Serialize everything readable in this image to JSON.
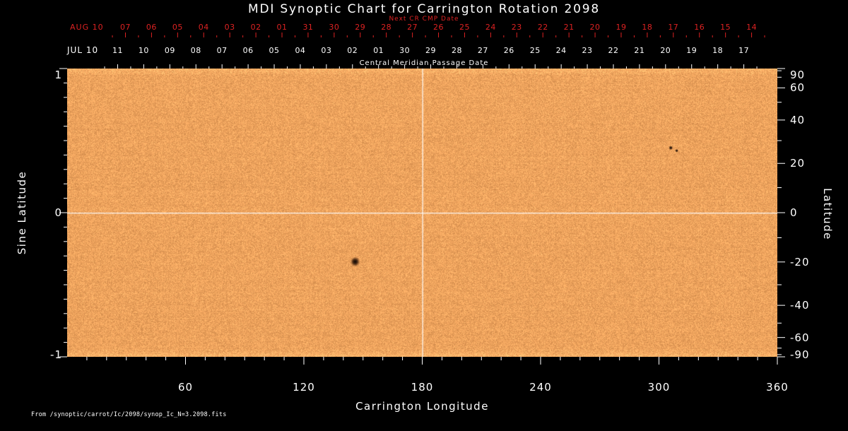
{
  "chart_data": {
    "type": "heatmap",
    "title": "MDI Synoptic Chart for Carrington Rotation 2098",
    "xlabel": "Carrington Longitude",
    "ylabel_left": "Sine Latitude",
    "ylabel_right": "Latitude",
    "x_range": [
      0,
      360
    ],
    "y_range_sine": [
      -1,
      1
    ],
    "x_major_ticks": [
      60,
      120,
      180,
      240,
      300,
      360
    ],
    "x_minor_step_deg": 10,
    "left_ticks_sine": [
      1,
      0,
      -1
    ],
    "left_minor_step_sine": 0.1,
    "right_ticks_deg": [
      90,
      60,
      40,
      20,
      0,
      -20,
      -40,
      -60,
      -90
    ],
    "right_minor_ticks_deg": [
      80,
      70,
      50,
      30,
      10,
      -10,
      -30,
      -50,
      -70,
      -80
    ],
    "crosshair": {
      "longitude": 180,
      "sine_latitude": 0
    },
    "top_axis_red": {
      "label": "Next CR CMP Date",
      "month_label": "AUG 10",
      "tick_labels": [
        "07",
        "06",
        "05",
        "04",
        "03",
        "02",
        "01",
        "31",
        "30",
        "29",
        "28",
        "27",
        "26",
        "25",
        "24",
        "23",
        "22",
        "21",
        "20",
        "19",
        "18",
        "17",
        "16",
        "15",
        "14"
      ]
    },
    "top_axis_white": {
      "label": "Central Meridian Passage Date",
      "month_label": "JUL 10",
      "tick_labels": [
        "11",
        "10",
        "09",
        "08",
        "07",
        "06",
        "05",
        "04",
        "03",
        "02",
        "01",
        "30",
        "29",
        "28",
        "27",
        "26",
        "25",
        "24",
        "23",
        "22",
        "21",
        "20",
        "19",
        "18",
        "17"
      ]
    },
    "sunspots": [
      {
        "longitude": 146,
        "sine_latitude": -0.34,
        "radius_px": 3.2
      },
      {
        "longitude": 306,
        "sine_latitude": 0.45,
        "radius_px": 1.4
      },
      {
        "longitude": 309,
        "sine_latitude": 0.43,
        "radius_px": 1.1
      }
    ],
    "source_note": "From /synoptic/carrot/Ic/2098/synop_Ic_N=3.2098.fits",
    "colors": {
      "background": "#000000",
      "text": "#ffffff",
      "red_axis": "#dd2222",
      "map_base": "#eea35d",
      "crosshair": "#ffffff"
    }
  }
}
